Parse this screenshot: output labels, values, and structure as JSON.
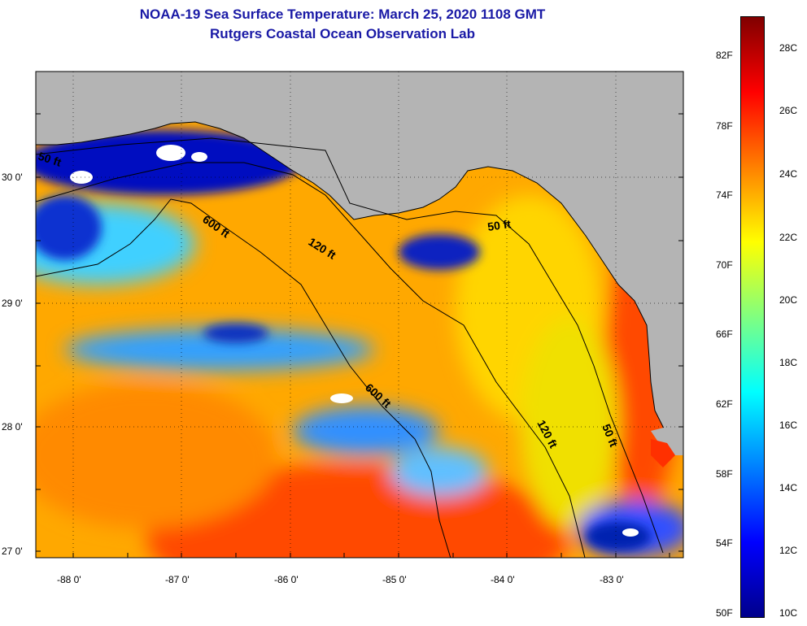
{
  "title": "NOAA-19 Sea Surface Temperature:  March 25, 2020 1108 GMT",
  "subtitle": "Rutgers Coastal Ocean Observation Lab",
  "map": {
    "lat_ticks": [
      "30 0'",
      "29 0'",
      "28 0'",
      "27 0'"
    ],
    "lon_ticks": [
      "-88 0'",
      "-87 0'",
      "-86 0'",
      "-85 0'",
      "-84 0'",
      "-83 0'"
    ],
    "contour_labels": [
      "50 ft",
      "600 ft",
      "120 ft",
      "50 ft",
      "600 ft",
      "120 ft",
      "50 ft"
    ],
    "colors": {
      "land": "#b4b4b4",
      "coast": "#000000"
    }
  },
  "colorbar": {
    "fahrenheit_labels": [
      "82F",
      "78F",
      "74F",
      "70F",
      "66F",
      "62F",
      "58F",
      "54F",
      "50F"
    ],
    "celsius_labels": [
      "28C",
      "26C",
      "24C",
      "22C",
      "20C",
      "18C",
      "16C",
      "14C",
      "12C",
      "10C"
    ],
    "gradient": [
      "#00008b",
      "#0000ff",
      "#0080ff",
      "#00ffff",
      "#80ff80",
      "#ffff00",
      "#ff8000",
      "#ff0000",
      "#800000"
    ]
  }
}
